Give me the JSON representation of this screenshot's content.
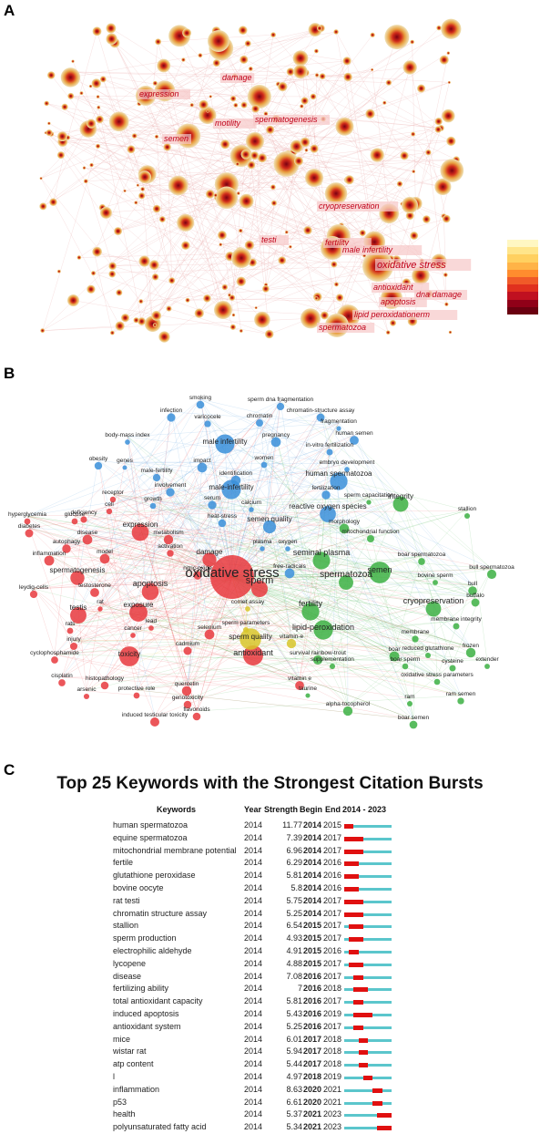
{
  "panels": {
    "a": "A",
    "b": "B",
    "c": "C"
  },
  "panel_a": {
    "labels": [
      "damage",
      "expression",
      "motility",
      "spermatogenesis",
      "semen",
      "cryopreservation",
      "testi",
      "fertility",
      "male infertility",
      "oxidative stress",
      "antioxidant",
      "dna damage",
      "apoptosis",
      "lipid peroxidationerm",
      "spermatozoa"
    ],
    "legend_colors": [
      "#fff7c2",
      "#ffe58a",
      "#ffd060",
      "#ffb347",
      "#ff8c2e",
      "#f05a28",
      "#e0301e",
      "#c01020",
      "#900018",
      "#6a0010"
    ]
  },
  "panel_b": {
    "cluster_colors": {
      "red": "#e8383d",
      "green": "#3cb043",
      "blue": "#3a8fd9",
      "yellow": "#d8c62a"
    },
    "labels": {
      "blue": [
        "smoking",
        "sperm dna fragmentation",
        "infection",
        "varicocele",
        "chromatin",
        "chromatin-structure assay",
        "fragmentation",
        "body-mass index",
        "male infertility",
        "pregnancy",
        "human semen",
        "in-vitro fertilization",
        "obesity",
        "genes",
        "impact",
        "women",
        "embryo development",
        "identification",
        "human spermatozoa",
        "male-fertility",
        "involvement",
        "male-infertility",
        "fertilization",
        "serum",
        "growth",
        "calcium",
        "reactive oxygen species",
        "heat-stress",
        "semen quality",
        "plasma",
        "oxygen",
        "free-radicals"
      ],
      "red": [
        "receptor",
        "cell",
        "glucose",
        "hyperglycemia",
        "deficiency",
        "expression",
        "diabetes",
        "disease",
        "metabolism",
        "autophagy",
        "activation",
        "inflammation",
        "model",
        "damage",
        "spermatogenesis",
        "nitric-oxide",
        "leydig-cells",
        "testosterone",
        "apoptosis",
        "rat",
        "testis",
        "exposure",
        "lead",
        "rats",
        "injury",
        "cancer",
        "selenium",
        "cadmium",
        "cyclophosphamide",
        "toxicity",
        "cisplatin",
        "histopathology",
        "arsenic",
        "protective role",
        "quercetin",
        "genotoxicity",
        "flavonoids",
        "induced testicular toxicity",
        "oxidative stress",
        "sperm",
        "antioxidant",
        "vitamin e"
      ],
      "green": [
        "sperm capacitation",
        "integrity",
        "stallion",
        "morphology",
        "mitochondrial function",
        "boar spermatozoa",
        "seminal plasma",
        "bull spermatozoa",
        "semen",
        "bovine sperm",
        "bull",
        "spermatozoa",
        "cryopreservation",
        "buffalo",
        "fertility",
        "membrane integrity",
        "frozen",
        "membrane",
        "lipid-peroxidation",
        "boar",
        "reduced glutathione",
        "survival rainbow-trout",
        "boar sperm",
        "cysteine",
        "extender",
        "supplementation",
        "oxidative stress parameters",
        "taurine",
        "ram",
        "ram semen",
        "alpha-tocopherol",
        "boar semen"
      ],
      "yellow": [
        "comet assay",
        "sperm parameters",
        "sperm quality",
        "vitamin-e"
      ]
    }
  },
  "panel_c": {
    "title": "Top 25 Keywords with the Strongest Citation Bursts",
    "headers": {
      "keywords": "Keywords",
      "year": "Year",
      "strength": "Strength",
      "begin": "Begin",
      "end": "End",
      "range": "2014 - 2023"
    },
    "colors": {
      "burst": "#e01010",
      "timeline": "#5bc6cc"
    },
    "chart_data": {
      "type": "table",
      "title": "Top 25 Keywords with the Strongest Citation Bursts",
      "timeline_range": [
        2014,
        2023
      ],
      "rows": [
        {
          "keyword": "human spermatozoa",
          "year": "2014",
          "strength": "11.77",
          "begin": "2014",
          "end": "2015"
        },
        {
          "keyword": "equine spermatozoa",
          "year": "2014",
          "strength": "7.39",
          "begin": "2014",
          "end": "2017"
        },
        {
          "keyword": "mitochondrial membrane potential",
          "year": "2014",
          "strength": "6.96",
          "begin": "2014",
          "end": "2017"
        },
        {
          "keyword": "fertile",
          "year": "2014",
          "strength": "6.29",
          "begin": "2014",
          "end": "2016"
        },
        {
          "keyword": "glutathione peroxidase",
          "year": "2014",
          "strength": "5.81",
          "begin": "2014",
          "end": "2016"
        },
        {
          "keyword": "bovine oocyte",
          "year": "2014",
          "strength": "5.8",
          "begin": "2014",
          "end": "2016"
        },
        {
          "keyword": "rat testi",
          "year": "2014",
          "strength": "5.75",
          "begin": "2014",
          "end": "2017"
        },
        {
          "keyword": "chromatin structure assay",
          "year": "2014",
          "strength": "5.25",
          "begin": "2014",
          "end": "2017"
        },
        {
          "keyword": "stallion",
          "year": "2014",
          "strength": "6.54",
          "begin": "2015",
          "end": "2017"
        },
        {
          "keyword": "sperm production",
          "year": "2014",
          "strength": "4.93",
          "begin": "2015",
          "end": "2017"
        },
        {
          "keyword": "electrophilic aldehyde",
          "year": "2014",
          "strength": "4.91",
          "begin": "2015",
          "end": "2016"
        },
        {
          "keyword": "lycopene",
          "year": "2014",
          "strength": "4.88",
          "begin": "2015",
          "end": "2017"
        },
        {
          "keyword": "disease",
          "year": "2014",
          "strength": "7.08",
          "begin": "2016",
          "end": "2017"
        },
        {
          "keyword": "fertilizing ability",
          "year": "2014",
          "strength": "7",
          "begin": "2016",
          "end": "2018"
        },
        {
          "keyword": "total antioxidant capacity",
          "year": "2014",
          "strength": "5.81",
          "begin": "2016",
          "end": "2017"
        },
        {
          "keyword": "induced apoptosis",
          "year": "2014",
          "strength": "5.43",
          "begin": "2016",
          "end": "2019"
        },
        {
          "keyword": "antioxidant system",
          "year": "2014",
          "strength": "5.25",
          "begin": "2016",
          "end": "2017"
        },
        {
          "keyword": "mice",
          "year": "2014",
          "strength": "6.01",
          "begin": "2017",
          "end": "2018"
        },
        {
          "keyword": "wistar rat",
          "year": "2014",
          "strength": "5.94",
          "begin": "2017",
          "end": "2018"
        },
        {
          "keyword": "atp content",
          "year": "2014",
          "strength": "5.44",
          "begin": "2017",
          "end": "2018"
        },
        {
          "keyword": "l",
          "year": "2014",
          "strength": "4.97",
          "begin": "2018",
          "end": "2019"
        },
        {
          "keyword": "inflammation",
          "year": "2014",
          "strength": "8.63",
          "begin": "2020",
          "end": "2021"
        },
        {
          "keyword": "p53",
          "year": "2014",
          "strength": "6.61",
          "begin": "2020",
          "end": "2021"
        },
        {
          "keyword": "health",
          "year": "2014",
          "strength": "5.37",
          "begin": "2021",
          "end": "2023"
        },
        {
          "keyword": "polyunsaturated fatty acid",
          "year": "2014",
          "strength": "5.34",
          "begin": "2021",
          "end": "2023"
        }
      ]
    }
  }
}
